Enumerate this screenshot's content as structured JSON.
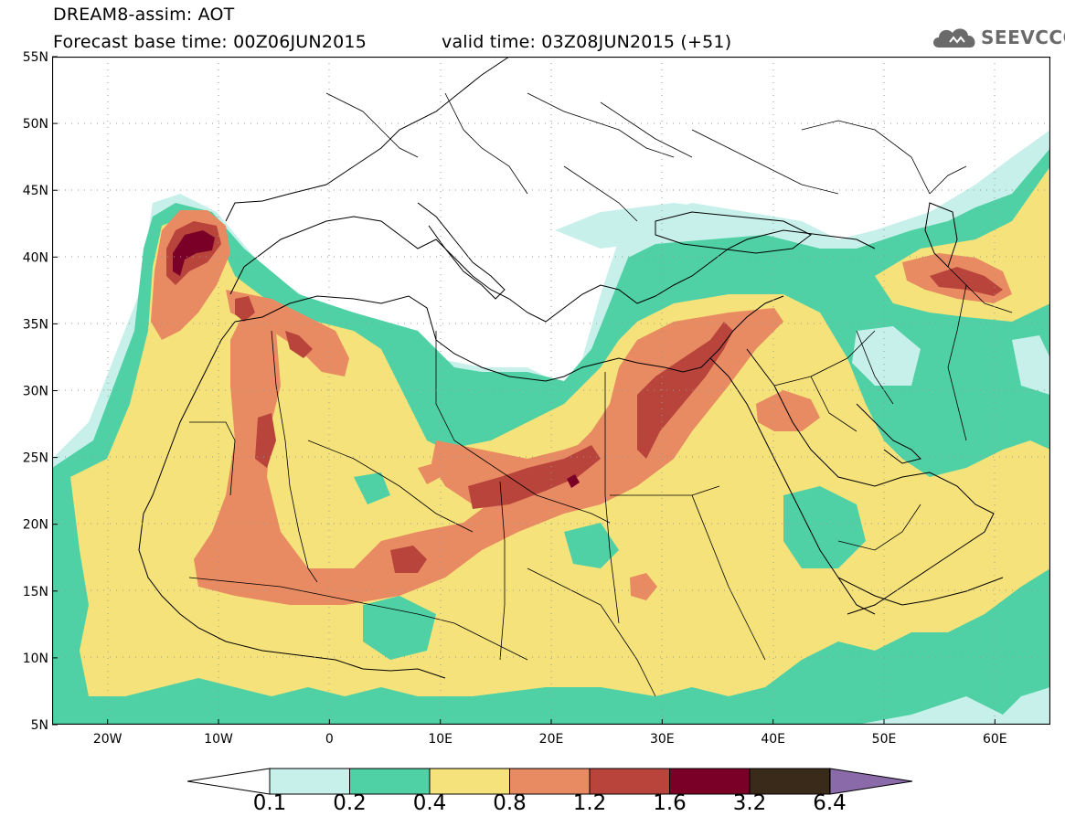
{
  "header": {
    "title": "DREAM8-assim: AOT",
    "base_time": "Forecast base time: 00Z06JUN2015",
    "valid_time": "valid time: 03Z08JUN2015 (+51)"
  },
  "logo": {
    "text": "SEEVCCC",
    "icon": "cloud-icon"
  },
  "map": {
    "lat_labels": [
      "55N",
      "50N",
      "45N",
      "40N",
      "35N",
      "30N",
      "25N",
      "20N",
      "15N",
      "10N",
      "5N"
    ],
    "lon_labels": [
      "20W",
      "10W",
      "0",
      "10E",
      "20E",
      "30E",
      "40E",
      "50E",
      "60E"
    ],
    "lat_range": [
      5,
      55
    ],
    "lon_range": [
      -25,
      65
    ],
    "field": "AOT"
  },
  "colorbar": {
    "labels": [
      "0.1",
      "0.2",
      "0.4",
      "0.8",
      "1.2",
      "1.6",
      "3.2",
      "6.4"
    ],
    "colors": [
      "#c8f0ea",
      "#4fd1a5",
      "#f5e27a",
      "#e88a62",
      "#b8443c",
      "#7a0028",
      "#3a2a1a",
      "#8a6aa8"
    ]
  }
}
